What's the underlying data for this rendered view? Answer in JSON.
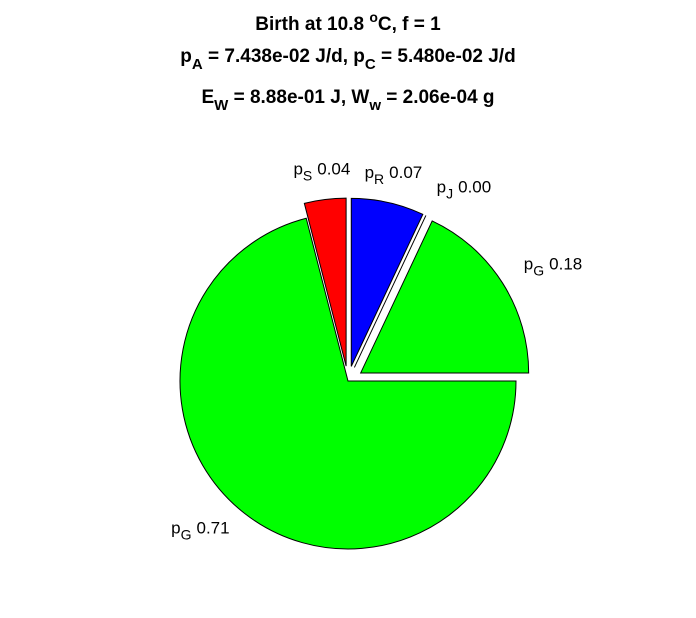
{
  "chart_data": {
    "type": "pie",
    "title": [
      [
        "Birth at 10.8 ",
        "o",
        "C, f = 1"
      ],
      [
        "p",
        "A",
        " = 7.438e-02 J/d, p",
        "C",
        " = 5.480e-02 J/d"
      ],
      [
        "E",
        "W",
        " = 8.88e-01 J, W",
        "w",
        " = 2.06e-04 g"
      ]
    ],
    "categories": [
      [
        "p",
        "S"
      ],
      [
        "p",
        "G"
      ],
      [
        "p",
        "G"
      ],
      [
        "p",
        "J"
      ],
      [
        "p",
        "R"
      ]
    ],
    "values": [
      0.04,
      0.71,
      0.18,
      0,
      0.07
    ],
    "value_labels": [
      "0.04",
      "0.71",
      "0.18",
      "0.00",
      "0.07"
    ],
    "colors": [
      "#ff0000",
      "#00ff00",
      "#00ff00",
      "#ffffff",
      "#0000ff"
    ],
    "explode": [
      true,
      false,
      true,
      true,
      true
    ]
  }
}
